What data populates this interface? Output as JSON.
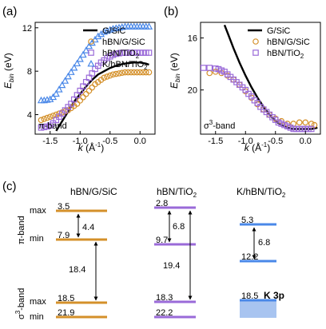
{
  "panel_labels": {
    "a": "(a)",
    "b": "(b)",
    "c": "(c)"
  },
  "colors": {
    "g_sic": "#000000",
    "hbn_g_sic": "#d4902a",
    "hbn_tio2": "#9a6ad8",
    "k_hbn_tio2": "#4a88e8",
    "k3p_fill": "#a8c4f0"
  },
  "chart_data": [
    {
      "type": "scatter",
      "id": "a",
      "ylabel": "E_bin (eV)",
      "xlabel": "k (Å⁻¹)",
      "annotation": "π-band",
      "xlim": [
        -1.75,
        0.25
      ],
      "ylim": [
        12.5,
        2.2
      ],
      "xticks": [
        -1.5,
        -1.0,
        -0.5,
        0.0
      ],
      "xtick_labels": [
        "-1.5",
        "-1.0",
        "-0.5",
        "0.0"
      ],
      "yticks": [
        4,
        8,
        12
      ],
      "ytick_labels": [
        "4",
        "8",
        "12"
      ],
      "legend_position": "top-right",
      "series": [
        {
          "name": "G/SiC",
          "marker": "line",
          "color": "#000000",
          "x": [
            -1.4,
            -1.3,
            -1.2,
            -1.1,
            -1.0,
            -0.9,
            -0.8,
            -0.7,
            -0.6,
            -0.5,
            -0.4,
            -0.3,
            -0.2,
            -0.1,
            0.0,
            0.1,
            0.15
          ],
          "y": [
            2.5,
            3.4,
            4.3,
            5.2,
            5.9,
            6.6,
            7.2,
            7.7,
            8.0,
            8.3,
            8.5,
            8.65,
            8.75,
            8.8,
            8.8,
            8.7,
            8.6
          ]
        },
        {
          "name": "hBN/G/SiC",
          "marker": "circle",
          "color": "#d4902a",
          "x": [
            -1.65,
            -1.6,
            -1.55,
            -1.5,
            -1.45,
            -1.4,
            -1.35,
            -1.3,
            -1.25,
            -1.2,
            -1.15,
            -1.1,
            -1.05,
            -1.0,
            -0.95,
            -0.9,
            -0.85,
            -0.8,
            -0.75,
            -0.7,
            -0.65,
            -0.6,
            -0.55,
            -0.5,
            -0.45,
            -0.4,
            -0.35,
            -0.3,
            -0.25,
            -0.2,
            -0.15,
            -0.1,
            -0.05,
            0.0,
            0.05,
            0.1,
            0.15
          ],
          "y": [
            3.5,
            3.6,
            3.7,
            3.8,
            3.9,
            4.0,
            4.1,
            4.2,
            4.3,
            4.4,
            4.6,
            4.8,
            5.0,
            5.3,
            5.6,
            5.9,
            6.2,
            6.5,
            6.8,
            7.0,
            7.2,
            7.4,
            7.5,
            7.6,
            7.7,
            7.75,
            7.8,
            7.85,
            7.9,
            7.9,
            7.9,
            7.9,
            7.9,
            7.9,
            7.9,
            7.9,
            7.9
          ]
        },
        {
          "name": "hBN/TiO₂",
          "marker": "square",
          "color": "#9a6ad8",
          "x": [
            -1.65,
            -1.6,
            -1.55,
            -1.5,
            -1.45,
            -1.4,
            -1.35,
            -1.3,
            -1.25,
            -1.2,
            -1.15,
            -1.1,
            -1.05,
            -1.0,
            -0.95,
            -0.9,
            -0.85,
            -0.8,
            -0.75,
            -0.7,
            -0.65,
            -0.6,
            -0.55,
            -0.5,
            -0.45,
            -0.4,
            -0.35,
            -0.3,
            -0.25,
            -0.2,
            -0.15,
            -0.1,
            -0.05,
            0.0,
            0.05,
            0.1,
            0.15
          ],
          "y": [
            2.8,
            2.85,
            2.9,
            3.0,
            3.2,
            3.5,
            3.8,
            4.1,
            4.4,
            4.7,
            5.0,
            5.4,
            5.8,
            6.2,
            6.6,
            7.0,
            7.4,
            7.8,
            8.2,
            8.5,
            8.8,
            9.0,
            9.2,
            9.35,
            9.5,
            9.6,
            9.65,
            9.7,
            9.7,
            9.7,
            9.7,
            9.7,
            9.7,
            9.7,
            9.7,
            9.7,
            9.7
          ]
        },
        {
          "name": "K/hBN/TiO₂",
          "marker": "triangle",
          "color": "#4a88e8",
          "x": [
            -1.65,
            -1.6,
            -1.55,
            -1.5,
            -1.45,
            -1.4,
            -1.35,
            -1.3,
            -1.25,
            -1.2,
            -1.15,
            -1.1,
            -1.05,
            -1.0,
            -0.95,
            -0.9,
            -0.85,
            -0.8,
            -0.75,
            -0.7,
            -0.65,
            -0.6,
            -0.55,
            -0.5,
            -0.45,
            -0.4,
            -0.35,
            -0.3,
            -0.25,
            -0.2,
            -0.15,
            -0.1,
            -0.05,
            0.0,
            0.05,
            0.1,
            0.15
          ],
          "y": [
            5.3,
            5.3,
            5.35,
            5.4,
            5.6,
            5.9,
            6.3,
            6.7,
            7.1,
            7.5,
            7.9,
            8.3,
            8.7,
            9.1,
            9.5,
            9.9,
            10.3,
            10.6,
            10.9,
            11.2,
            11.4,
            11.6,
            11.7,
            11.8,
            11.9,
            11.95,
            12.0,
            12.05,
            12.1,
            12.1,
            12.1,
            12.1,
            12.1,
            12.1,
            12.1,
            12.1,
            12.1
          ]
        }
      ]
    },
    {
      "type": "scatter",
      "id": "b",
      "ylabel": "E_bin (eV)",
      "xlabel": "k (Å⁻¹)",
      "annotation": "σ³-band",
      "xlim": [
        -1.75,
        0.25
      ],
      "ylim": [
        14.8,
        23.4
      ],
      "xticks": [
        -1.5,
        -1.0,
        -0.5,
        0.0
      ],
      "xtick_labels": [
        "-1.5",
        "-1.0",
        "-0.5",
        "0.0"
      ],
      "yticks": [
        16,
        20
      ],
      "ytick_labels": [
        "16",
        "20"
      ],
      "legend_position": "top-right",
      "series": [
        {
          "name": "G/SiC",
          "marker": "line",
          "color": "#000000",
          "x": [
            -1.35,
            -1.3,
            -1.2,
            -1.1,
            -1.0,
            -0.9,
            -0.8,
            -0.7,
            -0.6,
            -0.5,
            -0.4,
            -0.3,
            -0.2,
            -0.1,
            0.0,
            0.1,
            0.2
          ],
          "y": [
            15.0,
            15.6,
            16.8,
            17.9,
            18.9,
            19.8,
            20.6,
            21.3,
            21.9,
            22.4,
            22.7,
            22.9,
            23.0,
            23.0,
            23.0,
            23.0,
            22.9
          ]
        },
        {
          "name": "hBN/G/SiC",
          "marker": "circle",
          "color": "#d4902a",
          "x": [
            -1.6,
            -1.5,
            -1.4,
            -1.3,
            -1.2,
            -1.1,
            -1.0,
            -0.9,
            -0.8,
            -0.7,
            -0.6,
            -0.5,
            -0.4,
            -0.3,
            -0.2,
            -0.1,
            0.0,
            0.1,
            0.15
          ],
          "y": [
            18.7,
            18.6,
            18.7,
            18.9,
            19.2,
            19.6,
            20.1,
            20.6,
            21.1,
            21.5,
            21.9,
            22.2,
            22.4,
            22.6,
            22.6,
            22.5,
            22.5,
            22.6,
            22.7
          ]
        },
        {
          "name": "hBN/TiO₂",
          "marker": "square",
          "color": "#9a6ad8",
          "x": [
            -1.7,
            -1.6,
            -1.5,
            -1.45,
            -1.4,
            -1.35,
            -1.3,
            -1.25,
            -1.2,
            -1.15,
            -1.1,
            -1.05,
            -1.0,
            -0.95,
            -0.9,
            -0.85,
            -0.8,
            -0.75,
            -0.7,
            -0.65,
            -0.6,
            -0.55,
            -0.5,
            -0.45,
            -0.4,
            -0.35,
            -0.3,
            -0.25,
            -0.2,
            -0.15,
            -0.1,
            -0.05,
            0.0,
            0.05,
            0.1
          ],
          "y": [
            18.3,
            18.3,
            18.35,
            18.4,
            18.5,
            18.6,
            18.8,
            19.0,
            19.2,
            19.4,
            19.6,
            19.8,
            20.0,
            20.3,
            20.5,
            20.8,
            21.0,
            21.3,
            21.5,
            21.7,
            21.9,
            22.1,
            22.3,
            22.5,
            22.6,
            22.7,
            22.8,
            22.9,
            23.0,
            23.0,
            23.0,
            23.0,
            23.0,
            23.0,
            23.0
          ]
        }
      ]
    },
    {
      "type": "diagram",
      "id": "c",
      "columns": [
        {
          "title": "hBN/G/SiC",
          "pi_max": "3.5",
          "pi_min": "7.9",
          "pi_width": "4.4",
          "gap": "18.4",
          "sigma_max": "18.5",
          "sigma_min": "21.9"
        },
        {
          "title": "hBN/TiO₂",
          "pi_max": "2.8",
          "pi_min": "9.7",
          "pi_width": "6.8",
          "gap": "19.4",
          "sigma_max": "18.3",
          "sigma_min": "22.2"
        },
        {
          "title": "K/hBN/TiO₂",
          "pi_max": "5.3",
          "pi_min": "12.2",
          "pi_width": "6.8",
          "k3p_value": "18.5",
          "k3p_label": "K 3p"
        }
      ],
      "row_labels": {
        "pi_band": "π-band",
        "sigma_band": "σ³-band",
        "max": "max",
        "min": "min"
      }
    }
  ]
}
